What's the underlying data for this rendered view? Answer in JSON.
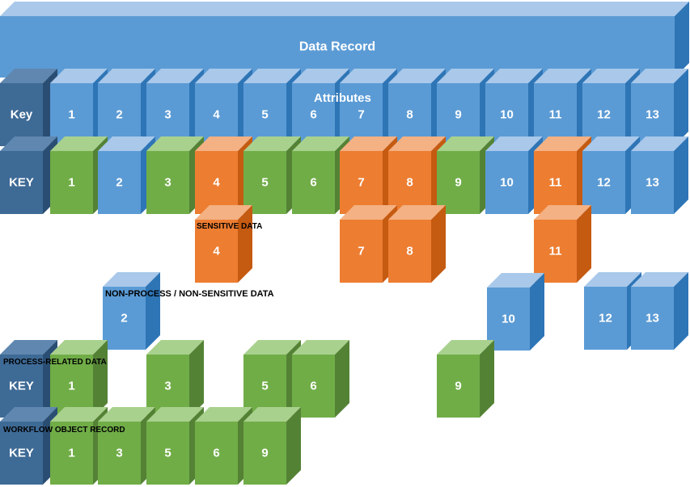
{
  "title": "Data Record",
  "attributes_label": "Attributes",
  "labels": {
    "sensitive": "SENSITIVE DATA",
    "non_process": "NON-PROCESS / NON-SENSITIVE DATA",
    "process_related": "PROCESS-RELATED DATA",
    "workflow": "WORKFLOW OBJECT RECORD"
  },
  "colors": {
    "blue": "#5b9bd5",
    "orange": "#ed7d31",
    "green": "#70ad47",
    "key": "#3e6a96"
  },
  "rows": {
    "attributes": {
      "key": "Key",
      "cells": [
        {
          "label": "1",
          "color": "blue"
        },
        {
          "label": "2",
          "color": "blue"
        },
        {
          "label": "3",
          "color": "blue"
        },
        {
          "label": "4",
          "color": "blue"
        },
        {
          "label": "5",
          "color": "blue"
        },
        {
          "label": "6",
          "color": "blue"
        },
        {
          "label": "7",
          "color": "blue"
        },
        {
          "label": "8",
          "color": "blue"
        },
        {
          "label": "9",
          "color": "blue"
        },
        {
          "label": "10",
          "color": "blue"
        },
        {
          "label": "11",
          "color": "blue"
        },
        {
          "label": "12",
          "color": "blue"
        },
        {
          "label": "13",
          "color": "blue"
        }
      ]
    },
    "classified": {
      "key": "KEY",
      "cells": [
        {
          "label": "1",
          "color": "green"
        },
        {
          "label": "2",
          "color": "blue"
        },
        {
          "label": "3",
          "color": "green"
        },
        {
          "label": "4",
          "color": "orange"
        },
        {
          "label": "5",
          "color": "green"
        },
        {
          "label": "6",
          "color": "green"
        },
        {
          "label": "7",
          "color": "orange"
        },
        {
          "label": "8",
          "color": "orange"
        },
        {
          "label": "9",
          "color": "green"
        },
        {
          "label": "10",
          "color": "blue"
        },
        {
          "label": "11",
          "color": "orange"
        },
        {
          "label": "12",
          "color": "blue"
        },
        {
          "label": "13",
          "color": "blue"
        }
      ]
    },
    "sensitive": {
      "cells": [
        {
          "label": "4",
          "color": "orange"
        },
        {
          "label": "7",
          "color": "orange"
        },
        {
          "label": "8",
          "color": "orange"
        },
        {
          "label": "11",
          "color": "orange"
        }
      ]
    },
    "non_process": {
      "cells": [
        {
          "label": "2",
          "color": "blue"
        },
        {
          "label": "10",
          "color": "blue"
        },
        {
          "label": "12",
          "color": "blue"
        },
        {
          "label": "13",
          "color": "blue"
        }
      ]
    },
    "process": {
      "key": "KEY",
      "cells": [
        {
          "label": "1",
          "color": "green"
        },
        {
          "label": "3",
          "color": "green"
        },
        {
          "label": "5",
          "color": "green"
        },
        {
          "label": "6",
          "color": "green"
        },
        {
          "label": "9",
          "color": "green"
        }
      ]
    },
    "workflow": {
      "key": "KEY",
      "cells": [
        {
          "label": "1",
          "color": "green"
        },
        {
          "label": "3",
          "color": "green"
        },
        {
          "label": "5",
          "color": "green"
        },
        {
          "label": "6",
          "color": "green"
        },
        {
          "label": "9",
          "color": "green"
        }
      ]
    }
  }
}
